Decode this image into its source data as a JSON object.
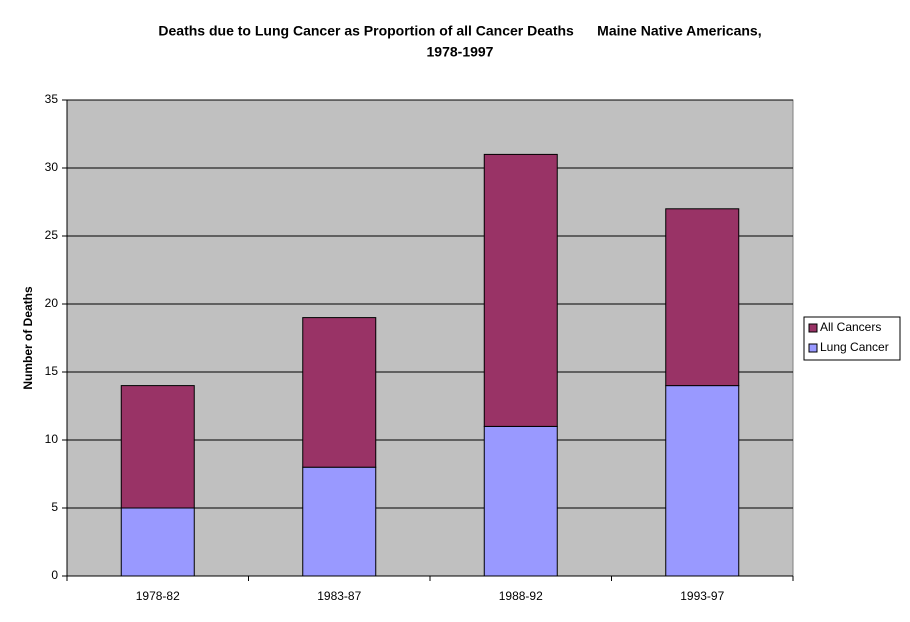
{
  "chart_data": {
    "type": "stacked_bar",
    "title": [
      "Deaths due to Lung Cancer as Proportion of all Cancer Deaths      Maine Native Americans,",
      "1978-1997"
    ],
    "ylabel": "Number of Deaths",
    "categories": [
      "1978-82",
      "1983-87",
      "1988-92",
      "1993-97"
    ],
    "series": [
      {
        "name": "Lung Cancer",
        "color": "#9999ff",
        "values": [
          5,
          8,
          11,
          14
        ]
      },
      {
        "name": "All Cancers",
        "color": "#993366",
        "values": [
          9,
          11,
          20,
          13
        ]
      }
    ],
    "ylim": [
      0,
      35
    ],
    "yticks": [
      0,
      5,
      10,
      15,
      20,
      25,
      30,
      35
    ],
    "grid": true,
    "legend": "right"
  }
}
